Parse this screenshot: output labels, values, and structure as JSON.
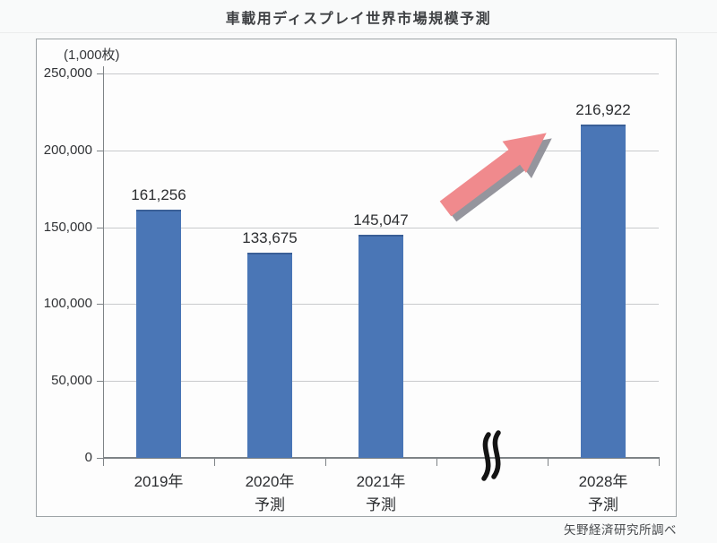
{
  "page": {
    "title": "車載用ディスプレイ世界市場規模予測",
    "source": "矢野経済研究所調べ"
  },
  "chart_data": {
    "type": "bar",
    "title": "車載用ディスプレイ世界市場規模予測",
    "unit_label": "(1,000枚)",
    "ylabel": "(1,000枚)",
    "xlabel": "",
    "categories": [
      {
        "lines": [
          "2019年"
        ]
      },
      {
        "lines": [
          "2020年",
          "予測"
        ]
      },
      {
        "lines": [
          "2021年",
          "予測"
        ]
      },
      {
        "lines": [],
        "axis_break": true
      },
      {
        "lines": [
          "2028年",
          "予測"
        ]
      }
    ],
    "values": [
      161256,
      133675,
      145047,
      null,
      216922
    ],
    "value_labels": [
      "161,256",
      "133,675",
      "145,047",
      null,
      "216,922"
    ],
    "ylim": [
      0,
      250000
    ],
    "ytick_step": 50000,
    "ytick_labels": [
      "0",
      "50,000",
      "100,000",
      "150,000",
      "200,000",
      "250,000"
    ],
    "grid": true,
    "legend": "none",
    "annotations": [
      "pink upward trend arrow between 2021 and 2028 bars",
      "axis break (wavy marks) on x-axis before 2028"
    ],
    "source": "矢野経済研究所調べ",
    "colors": {
      "bar": "#4a76b6",
      "bar_edge": "#3a5f97",
      "arrow": "#f08a8d",
      "arrow_shadow": "#8a8a92",
      "grid": "#c8cacc",
      "axis": "#7e8386"
    }
  }
}
